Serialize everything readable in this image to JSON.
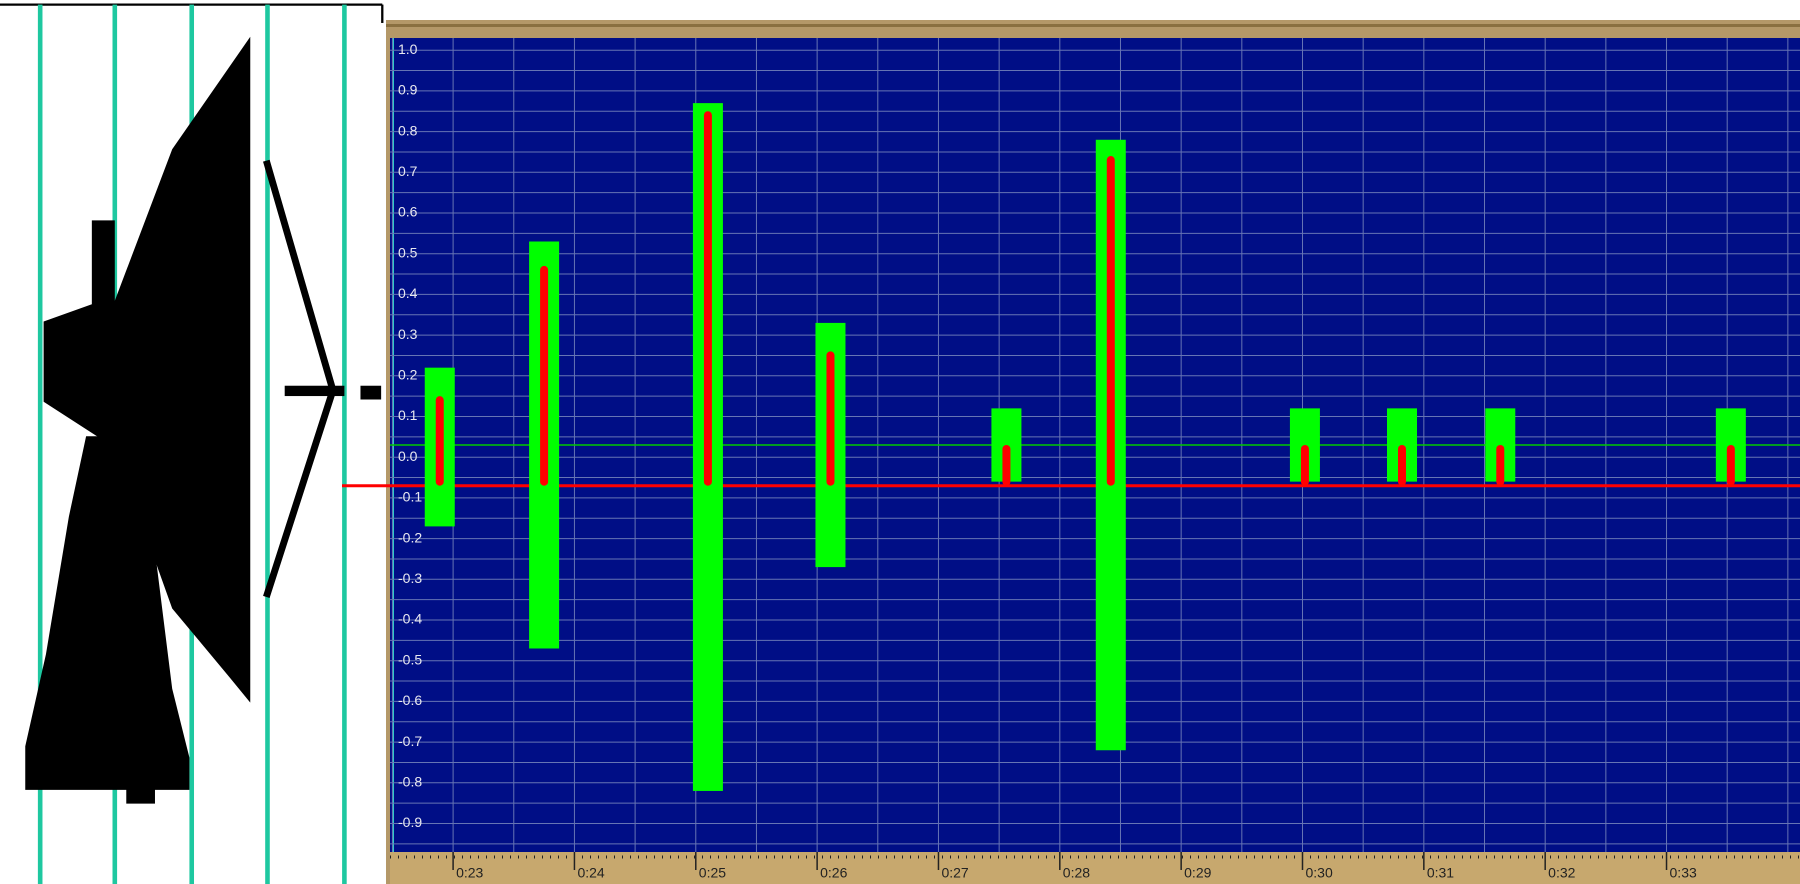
{
  "chart_data": {
    "type": "range_bar",
    "x": [
      22.89,
      23.75,
      25.1,
      26.11,
      27.56,
      28.42,
      30.02,
      30.82,
      31.63,
      33.53
    ],
    "max": [
      0.22,
      0.53,
      0.87,
      0.33,
      0.12,
      0.78,
      0.12,
      0.12,
      0.12,
      0.12
    ],
    "min": [
      -0.17,
      -0.47,
      -0.82,
      -0.27,
      -0.06,
      -0.72,
      -0.06,
      -0.06,
      -0.06,
      -0.06
    ],
    "peak": [
      0.15,
      0.47,
      0.85,
      0.26,
      0.03,
      0.74,
      0.03,
      0.03,
      0.03,
      0.03
    ],
    "range_color": "#00ff00",
    "peak_color": "#ff0000",
    "reference_lines": [
      {
        "value": 0.03,
        "color": "#00c800"
      },
      {
        "value": -0.07,
        "color": "#ff0000"
      }
    ],
    "xlim": [
      22.48,
      34.1
    ],
    "ylim": [
      -0.97,
      1.03
    ],
    "yticks": [
      {
        "value": 1,
        "label": "1.0"
      },
      0.9,
      0.8,
      0.7,
      0.6,
      0.5,
      0.4,
      0.3,
      0.2,
      0.1,
      {
        "value": 0,
        "label": "0.0"
      },
      -0.1,
      -0.2,
      -0.3,
      -0.4,
      -0.5,
      -0.6,
      -0.7,
      -0.8,
      -0.9
    ],
    "xticks": [
      {
        "value": 23,
        "label": "0:23"
      },
      {
        "value": 24,
        "label": "0:24"
      },
      {
        "value": 25,
        "label": "0:25"
      },
      {
        "value": 26,
        "label": "0:26"
      },
      {
        "value": 27,
        "label": "0:27"
      },
      {
        "value": 28,
        "label": "0:28"
      },
      {
        "value": 29,
        "label": "0:29"
      },
      {
        "value": 30,
        "label": "0:30"
      },
      {
        "value": 31,
        "label": "0:31"
      },
      {
        "value": 32,
        "label": "0:32"
      },
      {
        "value": 33,
        "label": "0:33"
      }
    ],
    "xgrid": [
      22.5,
      23,
      23.5,
      24,
      24.5,
      25,
      25.5,
      26,
      26.5,
      27,
      27.5,
      28,
      28.5,
      29,
      29.5,
      30,
      30.5,
      31,
      31.5,
      32,
      32.5,
      33,
      33.5,
      34
    ],
    "ygrid": [
      -0.95,
      -0.9,
      -0.85,
      -0.8,
      -0.75,
      -0.7,
      -0.65,
      -0.6,
      -0.55,
      -0.5,
      -0.45,
      -0.4,
      -0.35,
      -0.3,
      -0.25,
      -0.2,
      -0.15,
      -0.1,
      -0.05,
      0,
      0.05,
      0.1,
      0.15,
      0.2,
      0.25,
      0.3,
      0.35,
      0.4,
      0.45,
      0.5,
      0.55,
      0.6,
      0.65,
      0.7,
      0.75,
      0.8,
      0.85,
      0.9,
      0.95,
      1
    ],
    "grid": true
  }
}
